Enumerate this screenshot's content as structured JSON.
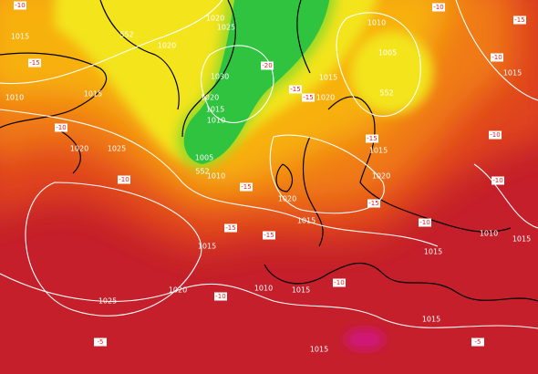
{
  "isobar_labels": [
    "1015",
    "1010",
    "1020",
    "1020",
    "1025",
    "1030",
    "1020",
    "1015",
    "1010",
    "1005",
    "1010",
    "552",
    "552",
    "1015",
    "1020",
    "1025",
    "1010",
    "1015",
    "1005",
    "552",
    "1020",
    "1015",
    "1020",
    "1020",
    "1015",
    "1015",
    "1025",
    "1020",
    "1010",
    "1015",
    "1015",
    "1015",
    "1015",
    "1010",
    "1015",
    "1015"
  ],
  "temperature_labels": [
    "-10",
    "-15",
    "-10",
    "-10",
    "-15",
    "-20",
    "-15",
    "-15",
    "-10",
    "-15",
    "-10",
    "-10",
    "-15",
    "-10",
    "-15",
    "-15",
    "-15",
    "-10",
    "-10",
    "-10",
    "-5",
    "-5"
  ]
}
